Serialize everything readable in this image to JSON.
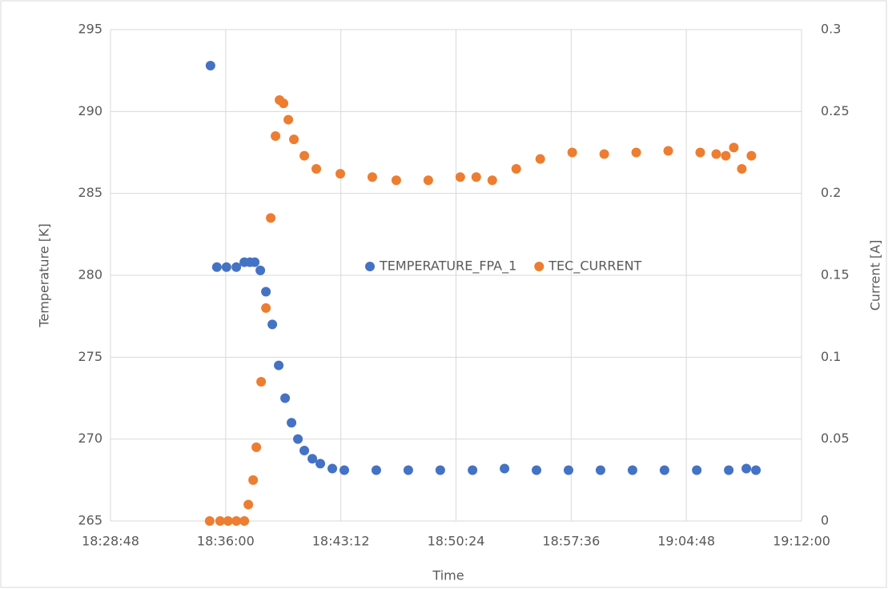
{
  "chart_data": {
    "type": "scatter",
    "xlabel": "Time",
    "ylabel": "Temperature [K]",
    "y2label": "Current  [A]",
    "xlim": [
      66528,
      69120
    ],
    "xticks": [
      {
        "value": 66528,
        "label": "18:28:48"
      },
      {
        "value": 66960,
        "label": "18:36:00"
      },
      {
        "value": 67392,
        "label": "18:43:12"
      },
      {
        "value": 67824,
        "label": "18:50:24"
      },
      {
        "value": 68256,
        "label": "18:57:36"
      },
      {
        "value": 68688,
        "label": "19:04:48"
      },
      {
        "value": 69120,
        "label": "19:12:00"
      }
    ],
    "ylim": [
      265,
      295
    ],
    "yticks": [
      265,
      270,
      275,
      280,
      285,
      290,
      295
    ],
    "y2lim": [
      0,
      0.3
    ],
    "y2ticks": [
      0,
      0.05,
      0.1,
      0.15,
      0.2,
      0.25,
      0.3
    ],
    "grid": true,
    "legend": "center",
    "series": [
      {
        "name": "TEMPERATURE_FPA_1",
        "color": "#4472c4",
        "x": [
          66903,
          66927,
          66963,
          67000,
          67030,
          67051,
          67069,
          67090,
          67111,
          67135,
          67159,
          67183,
          67207,
          67231,
          67255,
          67285,
          67315,
          67360,
          67405,
          67525,
          67645,
          67765,
          67886,
          68006,
          68126,
          68246,
          68366,
          68486,
          68606,
          68727,
          68847,
          68913,
          68949
        ],
        "values": [
          292.8,
          280.5,
          280.5,
          280.5,
          280.8,
          280.8,
          280.8,
          280.3,
          279,
          277,
          274.5,
          272.5,
          271,
          270,
          269.3,
          268.8,
          268.5,
          268.2,
          268.1,
          268.1,
          268.1,
          268.1,
          268.1,
          268.2,
          268.1,
          268.1,
          268.1,
          268.1,
          268.1,
          268.1,
          268.1,
          268.2,
          268.1
        ]
      },
      {
        "name": "TEC_CURRENT",
        "color": "#ed7d31",
        "axis": "y2",
        "x": [
          66900,
          66939,
          66969,
          67000,
          67030,
          67045,
          67063,
          67075,
          67093,
          67111,
          67129,
          67147,
          67162,
          67177,
          67195,
          67216,
          67255,
          67300,
          67390,
          67510,
          67600,
          67720,
          67840,
          67900,
          67960,
          68050,
          68140,
          68260,
          68380,
          68500,
          68620,
          68740,
          68800,
          68836,
          68866,
          68896,
          68932
        ],
        "values": [
          0,
          0,
          0,
          0,
          0,
          0.01,
          0.025,
          0.045,
          0.085,
          0.13,
          0.185,
          0.235,
          0.257,
          0.255,
          0.245,
          0.233,
          0.223,
          0.215,
          0.212,
          0.21,
          0.208,
          0.208,
          0.21,
          0.21,
          0.208,
          0.215,
          0.221,
          0.225,
          0.224,
          0.225,
          0.226,
          0.225,
          0.224,
          0.223,
          0.228,
          0.215,
          0.223
        ]
      }
    ]
  }
}
